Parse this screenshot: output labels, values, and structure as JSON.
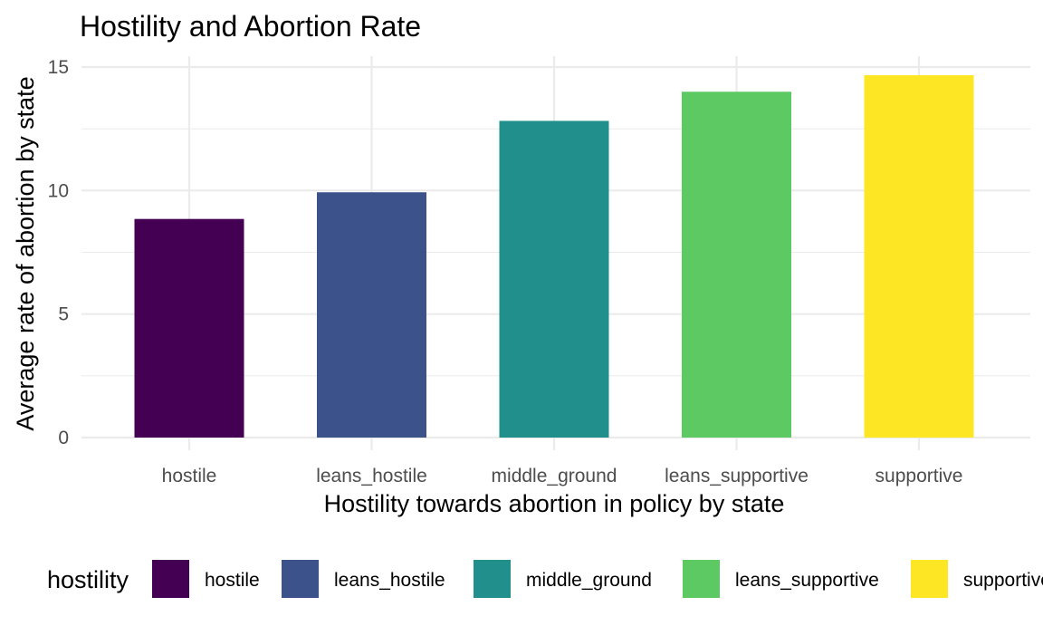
{
  "chart_data": {
    "type": "bar",
    "title": "Hostility and Abortion Rate",
    "xlabel": "Hostility towards abortion in policy by state",
    "ylabel": "Average rate of abortion by state",
    "categories": [
      "hostile",
      "leans_hostile",
      "middle_ground",
      "leans_supportive",
      "supportive"
    ],
    "values": [
      8.85,
      9.93,
      12.82,
      14.0,
      14.67
    ],
    "colors": [
      "#440154",
      "#3b528b",
      "#21908c",
      "#5dc963",
      "#fde725"
    ],
    "ylim": [
      0,
      15
    ],
    "yticks": [
      0,
      5,
      10,
      15
    ],
    "grid": true,
    "legend": {
      "title": "hostility",
      "position": "bottom",
      "entries": [
        "hostile",
        "leans_hostile",
        "middle_ground",
        "leans_supportive",
        "supportive"
      ]
    }
  }
}
